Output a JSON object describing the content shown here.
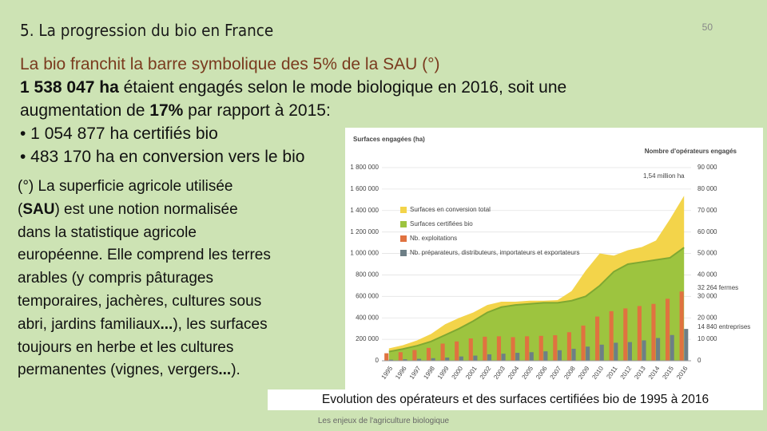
{
  "header": {
    "title": "5. La progression du bio en France",
    "page_number": 50
  },
  "body": {
    "lines": [
      [
        {
          "text": "La bio franchit la barre symbolique des 5% de la SAU (°)",
          "color": "#7a3a1e"
        }
      ],
      [
        {
          "text": "1 538 047 ha",
          "bold": true
        },
        {
          "text": " étaient engagés selon le mode biologique en 2016, soit une"
        }
      ],
      [
        {
          "text": "augmentation de "
        },
        {
          "text": "17%",
          "bold": true
        },
        {
          "text": " par rapport à 2015:"
        }
      ],
      [
        {
          "text": "• 1 054 877 ha certifiés bio"
        }
      ],
      [
        {
          "text": "• 483 170 ha en conversion vers le bio"
        }
      ]
    ]
  },
  "note": {
    "lines": [
      [
        {
          "text": "(°) La superficie agricole utilisée"
        }
      ],
      [
        {
          "text": "("
        },
        {
          "text": "SAU",
          "bold": true
        },
        {
          "text": ") est une notion normalisée"
        }
      ],
      [
        {
          "text": "dans la statistique agricole"
        }
      ],
      [
        {
          "text": "européenne. Elle comprend les terres"
        }
      ],
      [
        {
          "text": "arables (y compris pâturages"
        }
      ],
      [
        {
          "text": "temporaires, jachères, cultures sous"
        }
      ],
      [
        {
          "text": "abri, jardins familiaux"
        },
        {
          "text": "...",
          "bold": true
        },
        {
          "text": "), les surfaces"
        }
      ],
      [
        {
          "text": "toujours en herbe et les cultures"
        }
      ],
      [
        {
          "text": "permanentes (vignes, vergers"
        },
        {
          "text": "...",
          "bold": true
        },
        {
          "text": ")."
        }
      ]
    ]
  },
  "chart_data": {
    "type": "area-bar",
    "ylabel": "Surfaces engagées (ha)",
    "y2label": "Nombre d'opérateurs engagés",
    "x": [
      1995,
      1996,
      1997,
      1998,
      1999,
      2000,
      2001,
      2002,
      2003,
      2004,
      2005,
      2006,
      2007,
      2008,
      2009,
      2010,
      2011,
      2012,
      2013,
      2014,
      2015,
      2016
    ],
    "series": [
      {
        "name": "Surfaces en conversion total",
        "color": "#f3d44a",
        "kind": "area",
        "stacked": true,
        "values": [
          30000,
          35000,
          50000,
          70000,
          100000,
          100000,
          80000,
          70000,
          50000,
          30000,
          30000,
          20000,
          25000,
          90000,
          240000,
          300000,
          150000,
          130000,
          140000,
          180000,
          360000,
          483170
        ]
      },
      {
        "name": "Surfaces certifiées bio",
        "color": "#9dc43f",
        "kind": "area",
        "values": [
          85000,
          110000,
          140000,
          180000,
          240000,
          300000,
          370000,
          450000,
          500000,
          520000,
          530000,
          540000,
          540000,
          560000,
          600000,
          700000,
          830000,
          900000,
          920000,
          940000,
          960000,
          1054877
        ]
      },
      {
        "name": "Nb. exploitations",
        "color": "#e07240",
        "kind": "bar",
        "axis": "y2",
        "values": [
          3500,
          4000,
          5000,
          6000,
          8000,
          9000,
          10400,
          11200,
          11400,
          11000,
          11400,
          11600,
          11900,
          13300,
          16400,
          20600,
          23100,
          24400,
          25500,
          26500,
          28900,
          32264
        ]
      },
      {
        "name": "Nb. préparateurs, distributeurs, importateurs et exportateurs",
        "color": "#6d7f86",
        "kind": "bar",
        "axis": "y2",
        "values": [
          500,
          700,
          900,
          1200,
          1500,
          2000,
          2400,
          3000,
          3300,
          3700,
          4000,
          4400,
          4900,
          5600,
          6600,
          7500,
          8400,
          8700,
          9500,
          10600,
          12000,
          14840
        ]
      }
    ],
    "ylim": [
      0,
      1800000
    ],
    "yticks": [
      0,
      {
        "value": 200000,
        "label": "200 000"
      },
      {
        "value": 400000,
        "label": "400 000"
      },
      {
        "value": 600000,
        "label": "600 000"
      },
      {
        "value": 800000,
        "label": "800 000"
      },
      {
        "value": 1000000,
        "label": "1 000 000"
      },
      {
        "value": 1200000,
        "label": "1 200 000"
      },
      {
        "value": 1400000,
        "label": "1 400 000"
      },
      {
        "value": 1600000,
        "label": "1 600 000"
      },
      {
        "value": 1800000,
        "label": "1 800 000"
      }
    ],
    "y2lim": [
      0,
      90000
    ],
    "y2ticks": [
      0,
      {
        "value": 10000,
        "label": "10 000"
      },
      {
        "value": 20000,
        "label": "20 000"
      },
      {
        "value": 30000,
        "label": "30 000"
      },
      {
        "value": 40000,
        "label": "40 000"
      },
      {
        "value": 50000,
        "label": "50 000"
      },
      {
        "value": 60000,
        "label": "60 000"
      },
      {
        "value": 70000,
        "label": "70 000"
      },
      {
        "value": 80000,
        "label": "80 000"
      },
      {
        "value": 90000,
        "label": "90 000"
      }
    ],
    "grid": true,
    "annotations": [
      "1,54 million ha",
      "32 264 fermes",
      "14 840 entreprises"
    ]
  },
  "caption": "Evolution des opérateurs et des surfaces certifiées bio de 1995 à 2016",
  "footer": "Les enjeux de l'agriculture biologique"
}
